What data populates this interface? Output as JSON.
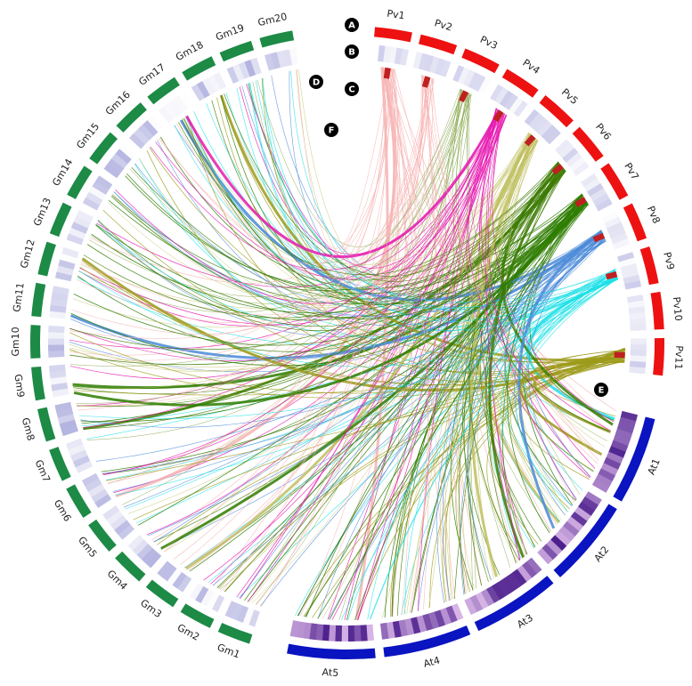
{
  "markers": [
    "A",
    "B",
    "C",
    "D",
    "E",
    "F"
  ],
  "chromosomes": {
    "pv": [
      "Pv1",
      "Pv2",
      "Pv3",
      "Pv4",
      "Pv5",
      "Pv6",
      "Pv7",
      "Pv8",
      "Pv9",
      "Pv10",
      "Pv11"
    ],
    "at": [
      "At1",
      "At2",
      "At3",
      "At4",
      "At5"
    ],
    "gm": [
      "Gm1",
      "Gm2",
      "Gm3",
      "Gm4",
      "Gm5",
      "Gm6",
      "Gm7",
      "Gm8",
      "Gm9",
      "Gm10",
      "Gm11",
      "Gm12",
      "Gm13",
      "Gm14",
      "Gm15",
      "Gm16",
      "Gm17",
      "Gm18",
      "Gm19",
      "Gm20"
    ]
  }
}
